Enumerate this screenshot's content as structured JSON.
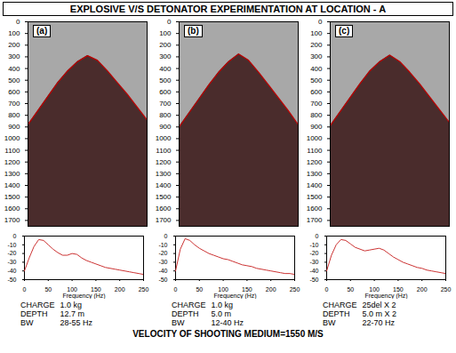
{
  "title": "EXPLOSIVE V/S DETONATOR EXPERIMENTATION AT LOCATION - A",
  "caption": "VELOCITY OF SHOOTING MEDIUM=1550 M/S",
  "chart_data": [
    {
      "type": "area",
      "title": "(a)",
      "x": [
        0,
        8,
        16,
        24,
        32,
        40,
        48,
        56,
        64,
        72,
        80,
        88,
        96
      ],
      "values": [
        880,
        760,
        640,
        520,
        420,
        340,
        290,
        330,
        420,
        520,
        620,
        730,
        840
      ],
      "xlim": [
        0,
        96
      ],
      "ylim": [
        0,
        1750
      ],
      "yticks": [
        0,
        100,
        200,
        300,
        400,
        500,
        600,
        700,
        800,
        900,
        1000,
        1100,
        1200,
        1300,
        1400,
        1500,
        1600,
        1700
      ],
      "tick_labels": "y",
      "color": "#4a2c2c",
      "spectrum": {
        "type": "line",
        "xlabel": "Frequency (Hz)",
        "x": [
          0,
          10,
          20,
          30,
          40,
          50,
          60,
          70,
          80,
          90,
          100,
          110,
          120,
          130,
          140,
          150,
          160,
          170,
          180,
          190,
          200,
          210,
          220,
          230,
          240,
          250
        ],
        "values": [
          -40,
          -25,
          -12,
          -4,
          -5,
          -10,
          -15,
          -19,
          -22,
          -22,
          -20,
          -21,
          -25,
          -28,
          -30,
          -32,
          -34,
          -36,
          -37,
          -38,
          -39,
          -40,
          -41,
          -42,
          -43,
          -44
        ],
        "xlim": [
          0,
          250
        ],
        "ylim": [
          -50,
          0
        ],
        "xticks": [
          0,
          50,
          100,
          150,
          200,
          250
        ],
        "yticks": [
          0,
          -10,
          -20,
          -30,
          -40,
          -50
        ],
        "color": "#cc3333"
      },
      "annotations": [
        {
          "label": "CHARGE",
          "text": "1.0 kg"
        },
        {
          "label": "DEPTH",
          "text": "12.7 m"
        },
        {
          "label": "BW",
          "text": "28-55 Hz"
        }
      ]
    },
    {
      "type": "area",
      "title": "(b)",
      "x": [
        0,
        8,
        16,
        24,
        32,
        40,
        48,
        56,
        64,
        72,
        80,
        88,
        96
      ],
      "values": [
        900,
        780,
        660,
        540,
        430,
        340,
        275,
        330,
        430,
        540,
        650,
        760,
        880
      ],
      "xlim": [
        0,
        96
      ],
      "ylim": [
        0,
        1750
      ],
      "yticks": [
        0,
        100,
        200,
        300,
        400,
        500,
        600,
        700,
        800,
        900,
        1000,
        1100,
        1200,
        1300,
        1400,
        1500,
        1600,
        1700
      ],
      "tick_labels": "y",
      "color": "#4a2c2c",
      "spectrum": {
        "type": "line",
        "xlabel": "Frequency (Hz)",
        "x": [
          0,
          10,
          20,
          30,
          40,
          50,
          60,
          70,
          80,
          90,
          100,
          110,
          120,
          130,
          140,
          150,
          160,
          170,
          180,
          190,
          200,
          210,
          220,
          230,
          240,
          250
        ],
        "values": [
          -40,
          -15,
          -3,
          -5,
          -10,
          -14,
          -17,
          -20,
          -22,
          -24,
          -26,
          -27,
          -29,
          -31,
          -33,
          -34,
          -35,
          -37,
          -38,
          -39,
          -40,
          -41,
          -42,
          -43,
          -43,
          -44
        ],
        "xlim": [
          0,
          250
        ],
        "ylim": [
          -50,
          0
        ],
        "xticks": [
          0,
          50,
          100,
          150,
          200,
          250
        ],
        "yticks": [
          0,
          -10,
          -20,
          -30,
          -40,
          -50
        ],
        "color": "#cc3333"
      },
      "annotations": [
        {
          "label": "CHARGE",
          "text": "1.0 kg"
        },
        {
          "label": "DEPTH",
          "text": "5.0 m"
        },
        {
          "label": "BW",
          "text": "12-40 Hz"
        }
      ]
    },
    {
      "type": "area",
      "title": "(c)",
      "x": [
        0,
        8,
        16,
        24,
        32,
        40,
        48,
        56,
        64,
        72,
        80,
        88,
        96
      ],
      "values": [
        890,
        770,
        650,
        530,
        420,
        340,
        285,
        340,
        430,
        530,
        640,
        750,
        860
      ],
      "xlim": [
        0,
        96
      ],
      "ylim": [
        0,
        1750
      ],
      "yticks": [
        0,
        100,
        200,
        300,
        400,
        500,
        600,
        700,
        800,
        900,
        1000,
        1100,
        1200,
        1300,
        1400,
        1500,
        1600,
        1700
      ],
      "tick_labels": "y",
      "color": "#4a2c2c",
      "spectrum": {
        "type": "line",
        "xlabel": "Frequency (Hz)",
        "x": [
          0,
          10,
          20,
          30,
          40,
          50,
          60,
          70,
          80,
          90,
          100,
          110,
          120,
          130,
          140,
          150,
          160,
          170,
          180,
          190,
          200,
          210,
          220,
          230,
          240,
          250
        ],
        "values": [
          -40,
          -22,
          -10,
          -4,
          -5,
          -9,
          -13,
          -15,
          -17,
          -16,
          -15,
          -14,
          -16,
          -20,
          -24,
          -27,
          -30,
          -32,
          -34,
          -36,
          -37,
          -39,
          -40,
          -41,
          -42,
          -43
        ],
        "xlim": [
          0,
          250
        ],
        "ylim": [
          -50,
          0
        ],
        "xticks": [
          0,
          50,
          100,
          150,
          200,
          250
        ],
        "yticks": [
          0,
          -10,
          -20,
          -30,
          -40,
          -50
        ],
        "color": "#cc3333"
      },
      "annotations": [
        {
          "label": "CHARGE",
          "text": "25del X 2"
        },
        {
          "label": "DEPTH",
          "text": "5.0 m X 2"
        },
        {
          "label": "BW",
          "text": "22-70 Hz"
        }
      ]
    }
  ]
}
